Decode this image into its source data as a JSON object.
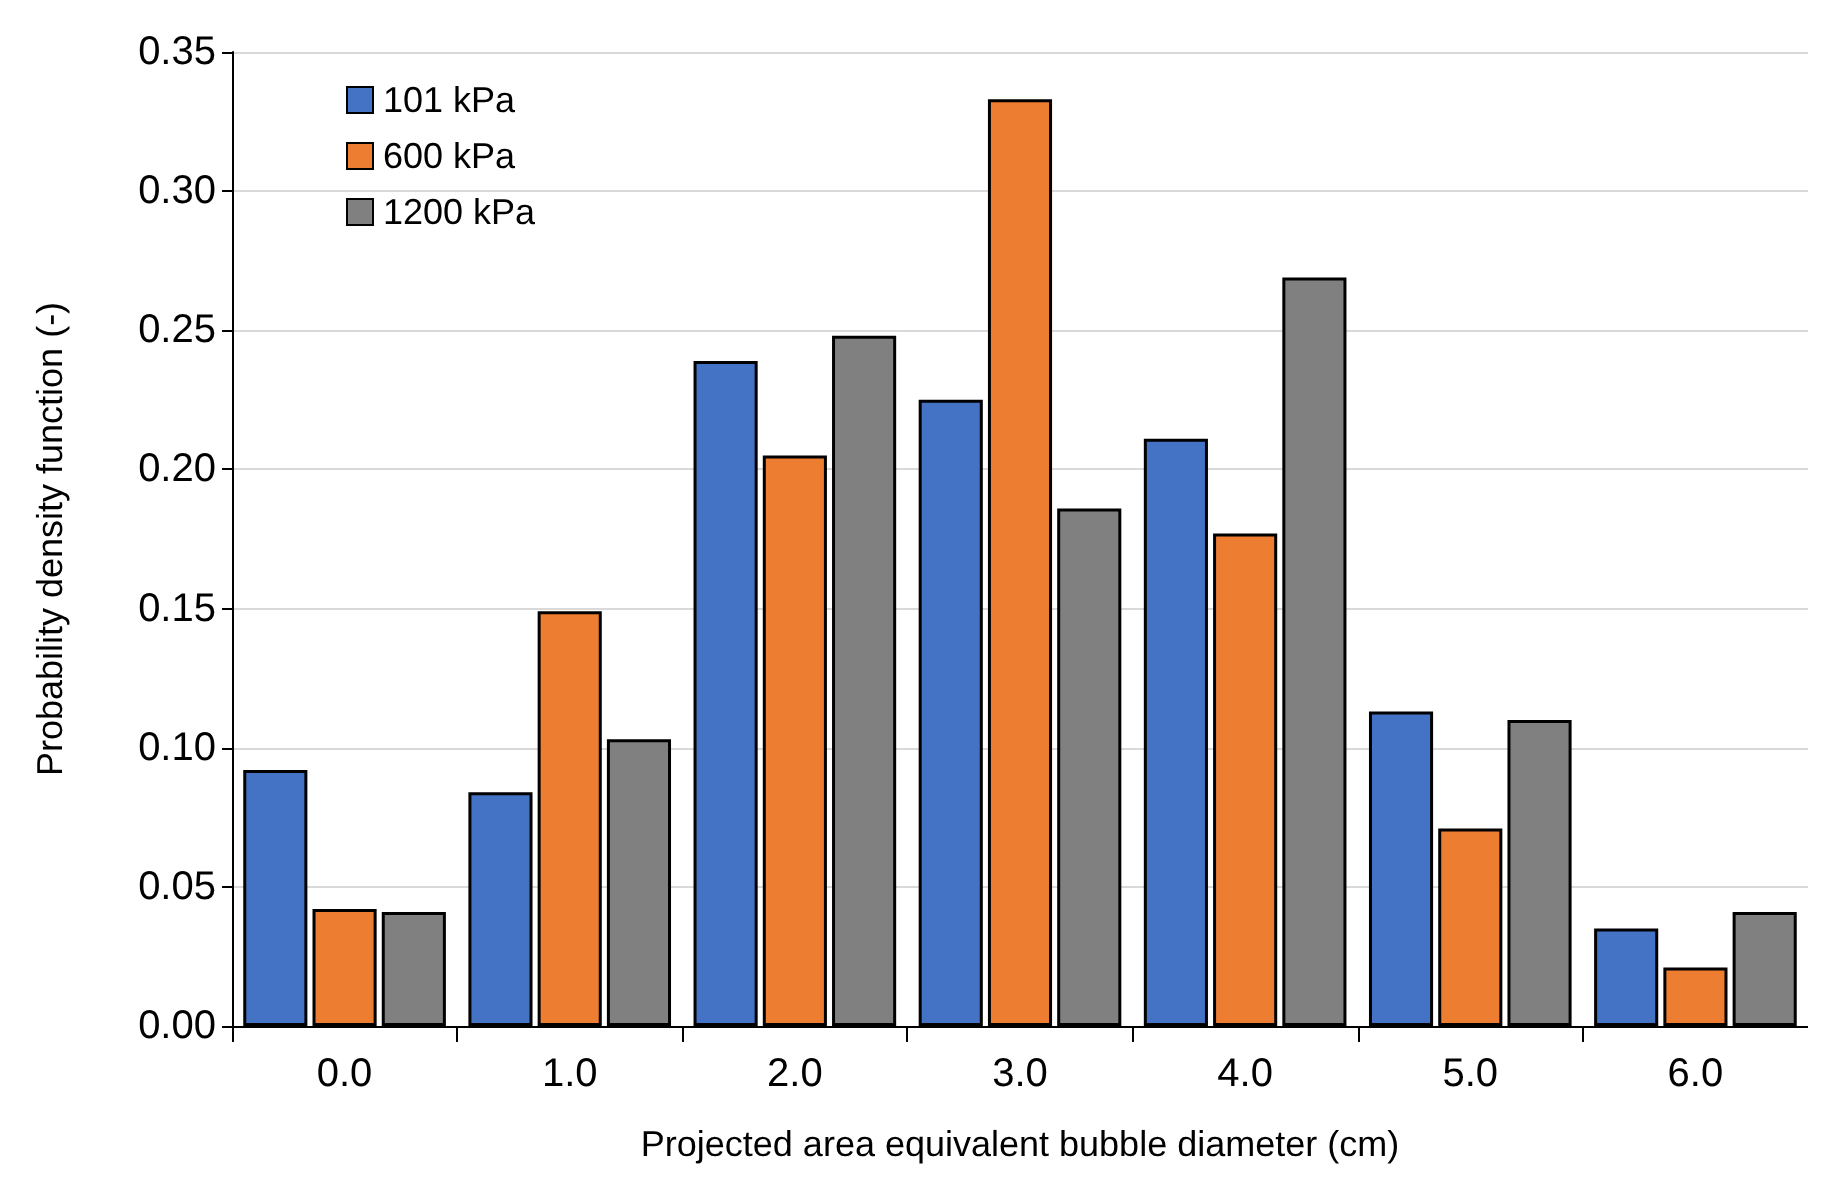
{
  "chart_data": {
    "type": "bar",
    "xlabel": "Projected area equivalent bubble diameter (cm)",
    "ylabel": "Probability density function (-)",
    "categories": [
      "0.0",
      "1.0",
      "2.0",
      "3.0",
      "4.0",
      "5.0",
      "6.0"
    ],
    "series": [
      {
        "name": "101 kPa",
        "color": "#4472c4",
        "values": [
          0.092,
          0.084,
          0.239,
          0.225,
          0.211,
          0.113,
          0.035
        ]
      },
      {
        "name": "600 kPa",
        "color": "#ed7d31",
        "values": [
          0.042,
          0.149,
          0.205,
          0.333,
          0.177,
          0.071,
          0.021
        ]
      },
      {
        "name": "1200 kPa",
        "color": "#808080",
        "values": [
          0.041,
          0.103,
          0.248,
          0.186,
          0.269,
          0.11,
          0.041
        ]
      }
    ],
    "ylim": [
      0,
      0.35
    ],
    "yticks": [
      {
        "value": 0,
        "label": "0.00"
      },
      {
        "value": 0.05,
        "label": "0.05"
      },
      {
        "value": 0.1,
        "label": "0.10"
      },
      {
        "value": 0.15,
        "label": "0.15"
      },
      {
        "value": 0.2,
        "label": "0.20"
      },
      {
        "value": 0.25,
        "label": "0.25"
      },
      {
        "value": 0.3,
        "label": "0.30"
      },
      {
        "value": 0.35,
        "label": "0.35"
      }
    ],
    "grid": "y",
    "legend": "top left"
  }
}
